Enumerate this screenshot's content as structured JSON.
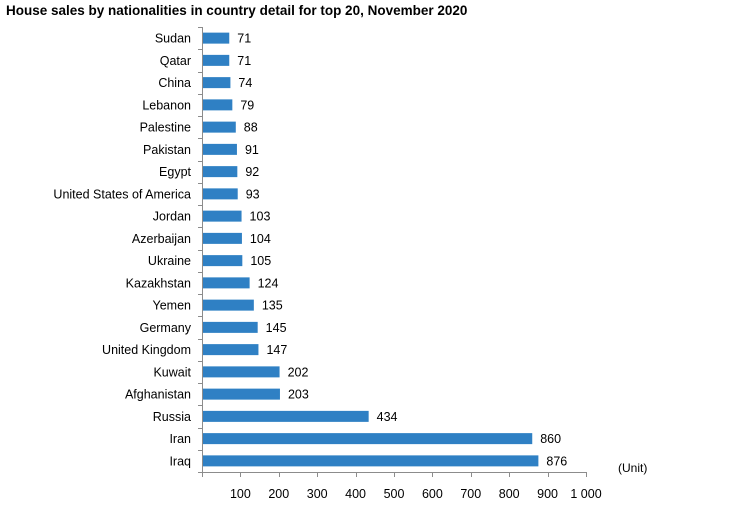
{
  "chart_data": {
    "type": "bar",
    "orientation": "horizontal",
    "title": "House sales by nationalities in country detail for top 20, November 2020",
    "unit_label": "(Unit)",
    "categories": [
      "Sudan",
      "Qatar",
      "China",
      "Lebanon",
      "Palestine",
      "Pakistan",
      "Egypt",
      "United States of America",
      "Jordan",
      "Azerbaijan",
      "Ukraine",
      "Kazakhstan",
      "Yemen",
      "Germany",
      "United Kingdom",
      "Kuwait",
      "Afghanistan",
      "Russia",
      "Iran",
      "Iraq"
    ],
    "values": [
      71,
      71,
      74,
      79,
      88,
      91,
      92,
      93,
      103,
      104,
      105,
      124,
      135,
      145,
      147,
      202,
      203,
      434,
      860,
      876
    ],
    "xlim": [
      0,
      1000
    ],
    "x_ticks": [
      100,
      200,
      300,
      400,
      500,
      600,
      700,
      800,
      900,
      1000
    ],
    "x_tick_labels": [
      "100",
      "200",
      "300",
      "400",
      "500",
      "600",
      "700",
      "800",
      "900",
      "1 000"
    ],
    "data_labels": true,
    "grid": false,
    "legend": "none",
    "bar_color": "#2f80c4"
  }
}
